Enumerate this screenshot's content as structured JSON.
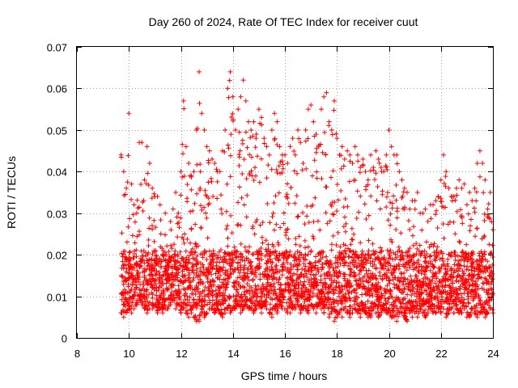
{
  "chart_data": {
    "type": "scatter",
    "title": "Day 260 of 2024, Rate Of TEC Index for receiver cuut",
    "xlabel": "GPS time / hours",
    "ylabel": "ROTI / TECUs",
    "xlim": [
      8,
      24
    ],
    "ylim": [
      0,
      0.07
    ],
    "xticks": [
      "8",
      "10",
      "12",
      "14",
      "16",
      "18",
      "20",
      "22",
      "24"
    ],
    "yticks": [
      "0",
      "0.01",
      "0.02",
      "0.03",
      "0.04",
      "0.05",
      "0.06",
      "0.07"
    ],
    "grid": true,
    "legend": "none",
    "marker": "plus",
    "series_color": "#ff0000",
    "series": [
      {
        "x": [
          9.7,
          9.8,
          9.9,
          10.0,
          10.1,
          10.2,
          10.3,
          10.4,
          10.5,
          10.6,
          10.7,
          10.8,
          10.9,
          11.0,
          11.1,
          11.2,
          11.3,
          11.4,
          11.5,
          11.6,
          11.7,
          11.8,
          11.9,
          12.0,
          12.1,
          12.2,
          12.3,
          12.4,
          12.5,
          12.6,
          12.7,
          12.8,
          12.9,
          13.0,
          13.1,
          13.2,
          13.3,
          13.4,
          13.5,
          13.6,
          13.7,
          13.8,
          13.9,
          14.0,
          14.1,
          14.2,
          14.3,
          14.4,
          14.5,
          14.6,
          14.7,
          14.8,
          14.9,
          15.0,
          15.1,
          15.2,
          15.3,
          15.4,
          15.5,
          15.6,
          15.7,
          15.8,
          15.9,
          16.0,
          16.1,
          16.2,
          16.3,
          16.4,
          16.5,
          16.6,
          16.7,
          16.8,
          16.9,
          17.0,
          17.1,
          17.2,
          17.3,
          17.4,
          17.5,
          17.6,
          17.7,
          17.8,
          17.9,
          18.0,
          18.1,
          18.2,
          18.3,
          18.4,
          18.5,
          18.6,
          18.7,
          18.8,
          18.9,
          19.0,
          19.1,
          19.2,
          19.3,
          19.4,
          19.5,
          19.6,
          19.7,
          19.8,
          19.9,
          20.0,
          20.1,
          20.2,
          20.3,
          20.4,
          20.5,
          20.6,
          20.7,
          20.8,
          20.9,
          21.0,
          21.1,
          21.2,
          21.3,
          21.4,
          21.5,
          21.6,
          21.7,
          21.8,
          21.9,
          22.0,
          22.1,
          22.2,
          22.3,
          22.4,
          22.5,
          22.6,
          22.7,
          22.8,
          22.9,
          23.0,
          23.1,
          23.2,
          23.3,
          23.4,
          23.5,
          23.6,
          23.7,
          23.8,
          23.9,
          24.0
        ],
        "values": [
          0.044,
          0.04,
          0.036,
          0.054,
          0.037,
          0.032,
          0.03,
          0.047,
          0.047,
          0.038,
          0.046,
          0.042,
          0.036,
          0.034,
          0.034,
          0.032,
          0.02,
          0.03,
          0.018,
          0.028,
          0.031,
          0.035,
          0.03,
          0.04,
          0.057,
          0.046,
          0.042,
          0.039,
          0.04,
          0.05,
          0.064,
          0.054,
          0.05,
          0.046,
          0.045,
          0.043,
          0.042,
          0.04,
          0.04,
          0.045,
          0.05,
          0.06,
          0.064,
          0.058,
          0.05,
          0.055,
          0.058,
          0.062,
          0.057,
          0.052,
          0.05,
          0.052,
          0.049,
          0.055,
          0.053,
          0.048,
          0.046,
          0.044,
          0.05,
          0.054,
          0.052,
          0.046,
          0.044,
          0.044,
          0.042,
          0.046,
          0.048,
          0.044,
          0.05,
          0.047,
          0.042,
          0.05,
          0.055,
          0.056,
          0.052,
          0.049,
          0.046,
          0.055,
          0.058,
          0.059,
          0.052,
          0.05,
          0.057,
          0.048,
          0.044,
          0.046,
          0.043,
          0.045,
          0.044,
          0.042,
          0.046,
          0.044,
          0.041,
          0.043,
          0.04,
          0.038,
          0.044,
          0.041,
          0.045,
          0.043,
          0.041,
          0.04,
          0.044,
          0.05,
          0.046,
          0.044,
          0.044,
          0.04,
          0.038,
          0.036,
          0.035,
          0.031,
          0.033,
          0.033,
          0.035,
          0.03,
          0.03,
          0.031,
          0.028,
          0.032,
          0.032,
          0.033,
          0.034,
          0.038,
          0.044,
          0.04,
          0.036,
          0.034,
          0.034,
          0.036,
          0.038,
          0.036,
          0.037,
          0.032,
          0.035,
          0.033,
          0.036,
          0.042,
          0.045,
          0.042,
          0.038,
          0.031,
          0.035,
          0.026
        ],
        "min_values": [
          0.006,
          0.005,
          0.006,
          0.007,
          0.006,
          0.007,
          0.008,
          0.009,
          0.008,
          0.007,
          0.006,
          0.007,
          0.007,
          0.008,
          0.006,
          0.007,
          0.006,
          0.007,
          0.007,
          0.008,
          0.009,
          0.007,
          0.008,
          0.006,
          0.007,
          0.006,
          0.005,
          0.006,
          0.005,
          0.004,
          0.004,
          0.006,
          0.005,
          0.006,
          0.007,
          0.007,
          0.006,
          0.007,
          0.006,
          0.005,
          0.006,
          0.007,
          0.006,
          0.007,
          0.007,
          0.008,
          0.006,
          0.007,
          0.008,
          0.007,
          0.007,
          0.006,
          0.007,
          0.008,
          0.006,
          0.008,
          0.007,
          0.006,
          0.005,
          0.007,
          0.006,
          0.008,
          0.007,
          0.007,
          0.006,
          0.006,
          0.007,
          0.007,
          0.008,
          0.006,
          0.007,
          0.007,
          0.006,
          0.008,
          0.007,
          0.006,
          0.008,
          0.007,
          0.006,
          0.008,
          0.005,
          0.006,
          0.004,
          0.005,
          0.006,
          0.005,
          0.007,
          0.006,
          0.005,
          0.006,
          0.007,
          0.006,
          0.005,
          0.007,
          0.006,
          0.005,
          0.005,
          0.007,
          0.006,
          0.005,
          0.006,
          0.007,
          0.006,
          0.006,
          0.005,
          0.005,
          0.004,
          0.006,
          0.006,
          0.005,
          0.004,
          0.006,
          0.005,
          0.006,
          0.005,
          0.007,
          0.006,
          0.005,
          0.006,
          0.007,
          0.006,
          0.006,
          0.007,
          0.006,
          0.007,
          0.005,
          0.006,
          0.007,
          0.006,
          0.007,
          0.006,
          0.006,
          0.007,
          0.005,
          0.005,
          0.007,
          0.006,
          0.005,
          0.006,
          0.006,
          0.005,
          0.006,
          0.007,
          0.006
        ]
      }
    ]
  }
}
